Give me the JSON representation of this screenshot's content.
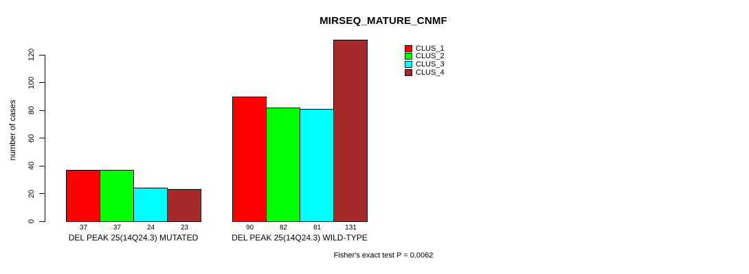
{
  "chart_data": {
    "type": "bar",
    "title": "MIRSEQ_MATURE_CNMF",
    "ylabel": "number of cases",
    "xlabel": "",
    "ylim": [
      0,
      120
    ],
    "yticks": [
      0,
      20,
      40,
      60,
      80,
      100,
      120
    ],
    "grid": false,
    "legend_position": "top-right",
    "categories": [
      "DEL PEAK 25(14Q24.3) MUTATED",
      "DEL PEAK 25(14Q24.3) WILD-TYPE"
    ],
    "series": [
      {
        "name": "CLUS_1",
        "color": "#FF0000",
        "values": [
          37,
          90
        ]
      },
      {
        "name": "CLUS_2",
        "color": "#00FF00",
        "values": [
          37,
          82
        ]
      },
      {
        "name": "CLUS_3",
        "color": "#00FFFF",
        "values": [
          24,
          81
        ]
      },
      {
        "name": "CLUS_4",
        "color": "#A52A2A",
        "values": [
          23,
          131
        ]
      }
    ],
    "annotation": "Fisher's exact test P = 0.0062"
  }
}
